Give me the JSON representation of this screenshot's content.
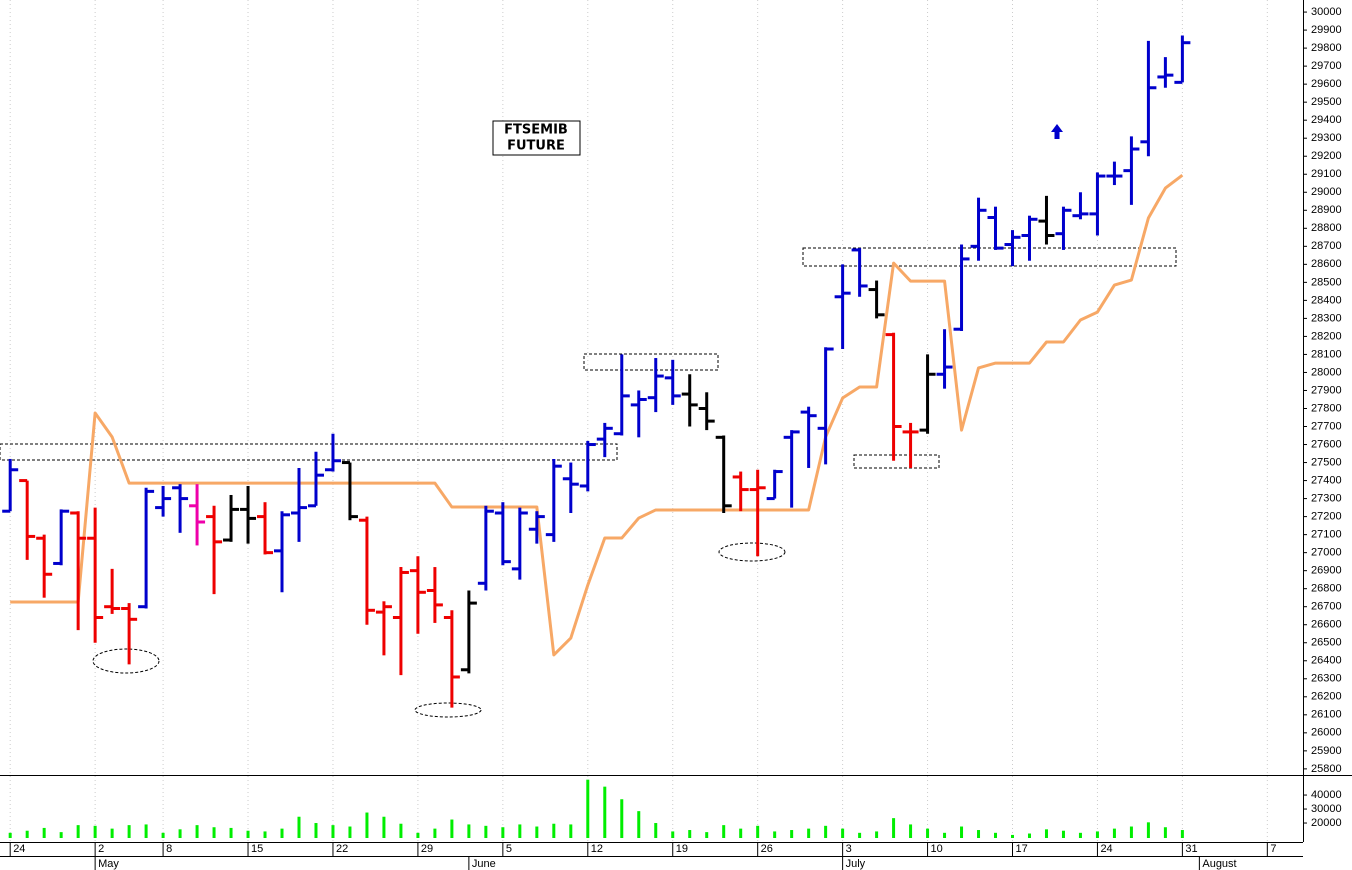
{
  "chart_data": [
    {
      "type": "ohlc",
      "title_lines": [
        "FTSEMIB",
        "FUTURE"
      ],
      "x": [
        0,
        1,
        2,
        3,
        4,
        5,
        6,
        7,
        8,
        9,
        10,
        11,
        12,
        13,
        14,
        15,
        16,
        17,
        18,
        19,
        20,
        21,
        22,
        23,
        24,
        25,
        26,
        27,
        28,
        29,
        30,
        31,
        32,
        33,
        34,
        35,
        36,
        37,
        38,
        39,
        40,
        41,
        42,
        43,
        44,
        45,
        46,
        47,
        48,
        49,
        50,
        51,
        52,
        53,
        54,
        55,
        56,
        57,
        58,
        59,
        60,
        61,
        62,
        63,
        64,
        65,
        66,
        67,
        68,
        69
      ],
      "open": [
        27230,
        27400,
        27080,
        26940,
        27220,
        27080,
        26700,
        26690,
        26700,
        27250,
        27360,
        27260,
        27200,
        27070,
        27240,
        27200,
        27010,
        27220,
        27260,
        27460,
        27500,
        27180,
        26670,
        26640,
        26900,
        26790,
        26640,
        26350,
        26830,
        27220,
        26910,
        27130,
        27100,
        27410,
        27370,
        27630,
        27660,
        27820,
        27860,
        27970,
        27880,
        27800,
        27640,
        27420,
        27350,
        27300,
        27640,
        27780,
        27690,
        28420,
        28680,
        28460,
        28210,
        27670,
        27680,
        27990,
        28240,
        28700,
        28860,
        28710,
        28760,
        28840,
        28770,
        28870,
        28880,
        29090,
        29120,
        29280,
        29640,
        29610
      ],
      "high": [
        27520,
        27400,
        27100,
        27240,
        27230,
        27250,
        26910,
        26720,
        27360,
        27370,
        27380,
        27380,
        27260,
        27320,
        27370,
        27280,
        27230,
        27470,
        27560,
        27660,
        27500,
        27200,
        26730,
        26920,
        26980,
        26920,
        26680,
        26790,
        27260,
        27280,
        27250,
        27230,
        27520,
        27500,
        27620,
        27720,
        28100,
        27900,
        28080,
        28070,
        27990,
        27890,
        27650,
        27450,
        27460,
        27460,
        27680,
        27810,
        28140,
        28600,
        28690,
        28510,
        28220,
        27720,
        28100,
        28240,
        28710,
        28970,
        28920,
        28790,
        28870,
        28980,
        28920,
        29000,
        29110,
        29170,
        29310,
        29840,
        29750,
        29870
      ],
      "low": [
        27230,
        26960,
        26750,
        26930,
        26570,
        26500,
        26660,
        26380,
        26690,
        27200,
        27110,
        27040,
        26770,
        27060,
        27050,
        26990,
        26780,
        27060,
        27260,
        27450,
        27180,
        26600,
        26430,
        26320,
        26550,
        26610,
        26140,
        26330,
        26790,
        26930,
        26850,
        27050,
        27060,
        27220,
        27340,
        27530,
        27650,
        27640,
        27780,
        27820,
        27700,
        27680,
        27220,
        27230,
        26980,
        27300,
        27250,
        27470,
        27490,
        28130,
        28420,
        28300,
        27510,
        27470,
        27660,
        27910,
        28230,
        28620,
        28680,
        28590,
        28620,
        28710,
        28680,
        28850,
        28760,
        29040,
        28930,
        29200,
        29580,
        29610
      ],
      "close": [
        27460,
        27090,
        26880,
        27230,
        27080,
        26640,
        26690,
        26630,
        27340,
        27300,
        27300,
        27170,
        27060,
        27240,
        27190,
        27000,
        27210,
        27250,
        27430,
        27510,
        27200,
        26680,
        26700,
        26890,
        26780,
        26710,
        26310,
        26720,
        27230,
        26950,
        27220,
        27200,
        27480,
        27380,
        27600,
        27690,
        27870,
        27850,
        27980,
        27870,
        27820,
        27730,
        27260,
        27350,
        27360,
        27450,
        27670,
        27760,
        28130,
        28440,
        28480,
        28320,
        27700,
        27670,
        27990,
        28030,
        28630,
        28900,
        28690,
        28750,
        28850,
        28760,
        28900,
        28880,
        29090,
        29090,
        29240,
        29580,
        29650,
        29830
      ],
      "bar_colors": [
        "#0000cc",
        "#ee0000",
        "#ee0000",
        "#0000cc",
        "#ee0000",
        "#ee0000",
        "#ee0000",
        "#ee0000",
        "#0000cc",
        "#0000cc",
        "#0000cc",
        "#ee00aa",
        "#ee0000",
        "#000000",
        "#000000",
        "#ee0000",
        "#0000cc",
        "#0000cc",
        "#0000cc",
        "#0000cc",
        "#000000",
        "#ee0000",
        "#ee0000",
        "#ee0000",
        "#ee0000",
        "#ee0000",
        "#ee0000",
        "#000000",
        "#0000cc",
        "#0000cc",
        "#0000cc",
        "#0000cc",
        "#0000cc",
        "#0000cc",
        "#0000cc",
        "#0000cc",
        "#0000cc",
        "#0000cc",
        "#0000cc",
        "#0000cc",
        "#000000",
        "#000000",
        "#000000",
        "#ee0000",
        "#ee0000",
        "#0000cc",
        "#0000cc",
        "#0000cc",
        "#0000cc",
        "#0000cc",
        "#0000cc",
        "#000000",
        "#ee0000",
        "#ee0000",
        "#000000",
        "#0000cc",
        "#0000cc",
        "#0000cc",
        "#0000cc",
        "#0000cc",
        "#0000cc",
        "#000000",
        "#0000cc",
        "#0000cc",
        "#0000cc",
        "#0000cc",
        "#0000cc",
        "#0000cc",
        "#0000cc",
        "#0000cc"
      ],
      "series": [
        {
          "color": "#f7a866",
          "values": [
            26726,
            26726,
            26726,
            26726,
            26726,
            27775,
            27642,
            27386,
            27386,
            27386,
            27386,
            27386,
            27386,
            27386,
            27386,
            27386,
            27386,
            27386,
            27386,
            27386,
            27386,
            27386,
            27386,
            27386,
            27386,
            27386,
            27253,
            27253,
            27253,
            27253,
            27253,
            27253,
            26432,
            26526,
            26820,
            27081,
            27081,
            27192,
            27237,
            27237,
            27237,
            27237,
            27237,
            27237,
            27237,
            27237,
            27237,
            27237,
            27642,
            27858,
            27919,
            27919,
            28607,
            28507,
            28507,
            28507,
            27680,
            28025,
            28052,
            28052,
            28052,
            28169,
            28169,
            28291,
            28335,
            28485,
            28513,
            28857,
            29023,
            29095
          ]
        }
      ],
      "xlim": [
        -0.6,
        76.1
      ],
      "ylim": [
        25766,
        30067
      ],
      "yticks": [
        25800,
        25900,
        26000,
        26100,
        26200,
        26300,
        26400,
        26500,
        26600,
        26700,
        26800,
        26900,
        27000,
        27100,
        27200,
        27300,
        27400,
        27500,
        27600,
        27700,
        27800,
        27900,
        28000,
        28100,
        28200,
        28300,
        28400,
        28500,
        28600,
        28700,
        28800,
        28900,
        29000,
        29100,
        29200,
        29300,
        29400,
        29500,
        29600,
        29700,
        29800,
        29900,
        30000
      ]
    },
    {
      "type": "bar",
      "x": [
        0,
        1,
        2,
        3,
        4,
        5,
        6,
        7,
        8,
        9,
        10,
        11,
        12,
        13,
        14,
        15,
        16,
        17,
        18,
        19,
        20,
        21,
        22,
        23,
        24,
        25,
        26,
        27,
        28,
        29,
        30,
        31,
        32,
        33,
        34,
        35,
        36,
        37,
        38,
        39,
        40,
        41,
        42,
        43,
        44,
        45,
        46,
        47,
        48,
        49,
        50,
        51,
        52,
        53,
        54,
        55,
        56,
        57,
        58,
        59,
        60,
        61,
        62,
        63,
        64,
        65,
        66,
        67,
        68,
        69
      ],
      "values": [
        13000,
        14500,
        16500,
        13500,
        18500,
        18000,
        16000,
        18500,
        19000,
        13000,
        15500,
        18500,
        17000,
        16500,
        14500,
        14000,
        16000,
        24500,
        20000,
        18500,
        17500,
        27500,
        24500,
        19500,
        13000,
        16000,
        22500,
        19000,
        18000,
        17000,
        19000,
        17500,
        19500,
        19000,
        51000,
        46000,
        37000,
        28500,
        20000,
        14000,
        15000,
        13500,
        18500,
        16000,
        18000,
        14000,
        15000,
        16000,
        18000,
        16000,
        13000,
        14000,
        23500,
        19000,
        16000,
        13000,
        17500,
        15000,
        13000,
        11500,
        12500,
        15500,
        14500,
        13000,
        14000,
        16000,
        17500,
        20500,
        17000,
        15000
      ],
      "color": "#00ee00",
      "xlim": [
        -0.6,
        76.1
      ],
      "ylim": [
        9300,
        52900
      ],
      "yticks": [
        20000,
        30000,
        40000
      ],
      "grid": true,
      "xticks": [
        {
          "value": 0,
          "label": "24"
        },
        {
          "value": 5,
          "label": "2"
        },
        {
          "value": 9,
          "label": "8"
        },
        {
          "value": 14,
          "label": "15"
        },
        {
          "value": 19,
          "label": "22"
        },
        {
          "value": 24,
          "label": "29"
        },
        {
          "value": 29,
          "label": "5"
        },
        {
          "value": 34,
          "label": "12"
        },
        {
          "value": 39,
          "label": "19"
        },
        {
          "value": 44,
          "label": "26"
        },
        {
          "value": 49,
          "label": "3"
        },
        {
          "value": 54,
          "label": "10"
        },
        {
          "value": 59,
          "label": "17"
        },
        {
          "value": 64,
          "label": "24"
        },
        {
          "value": 69,
          "label": "31"
        },
        {
          "value": 74,
          "label": "7"
        }
      ],
      "month_ticks": [
        {
          "value": 5,
          "label": "May"
        },
        {
          "value": 27,
          "label": "June"
        },
        {
          "value": 49,
          "label": "July"
        },
        {
          "value": 70,
          "label": "August"
        }
      ]
    }
  ]
}
